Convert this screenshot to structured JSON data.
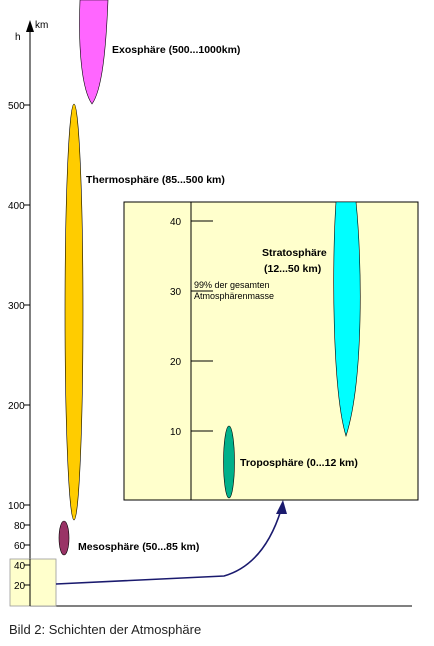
{
  "axis": {
    "unit_h": "h",
    "unit_km": "km",
    "ticks": [
      "20",
      "40",
      "60",
      "80",
      "100",
      "200",
      "300",
      "400",
      "500"
    ]
  },
  "layers": {
    "exosphere": "Exosphäre (500...1000km)",
    "thermosphere": "Thermosphäre (85...500 km)",
    "mesosphere": "Mesosphäre (50...85 km)",
    "stratosphere_line1": "Stratosphäre",
    "stratosphere_line2": "(12...50 km)",
    "troposphere": "Troposphäre (0...12 km)"
  },
  "inset": {
    "ticks": [
      "10",
      "20",
      "30",
      "40"
    ],
    "note_line1": "99% der gesamten",
    "note_line2": "Atmosphärenmasse"
  },
  "colors": {
    "exosphere": "#ff66ff",
    "thermosphere": "#ffcc00",
    "mesosphere": "#993366",
    "stratosphere": "#00ffff",
    "troposphere": "#00b08a",
    "inset_bg": "#ffffcc",
    "arrow": "#1a1a6e"
  },
  "caption": "Bild 2: Schichten der Atmosphäre"
}
